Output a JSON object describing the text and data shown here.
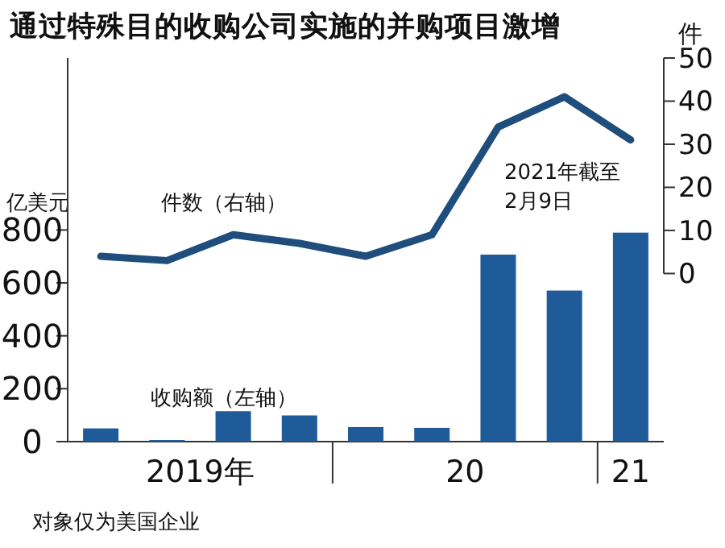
{
  "chart_data": {
    "type": "bar",
    "title": "通过特殊目的收购公司实施的并购项目激增",
    "ylabel": "亿美元",
    "y2label": "件",
    "categories": [
      null,
      null,
      null,
      null,
      null,
      null,
      null,
      null,
      null
    ],
    "series": [
      {
        "name": "收购额（左轴）",
        "type": "bar",
        "color": "#1f5b98",
        "values": [
          50,
          6,
          115,
          99,
          55,
          52,
          707,
          571,
          790
        ]
      },
      {
        "name": "件数（右轴）",
        "type": "line",
        "axis": "y2",
        "color": "#1f4e7d",
        "values": [
          4,
          3,
          9,
          7,
          4,
          9,
          34,
          41,
          31
        ]
      }
    ],
    "ylim": [
      0,
      1450
    ],
    "yticks": [
      0,
      200,
      400,
      600,
      800
    ],
    "y2lim": [
      -39,
      50
    ],
    "y2ticks": [
      0,
      10,
      20,
      30,
      40,
      50
    ],
    "grid": false,
    "legend": false,
    "marker": "none",
    "line_style": "solid",
    "annotations": [
      "2021年截至2月9日",
      "对象仅为美国企业",
      "2019年",
      "20",
      "21"
    ]
  }
}
